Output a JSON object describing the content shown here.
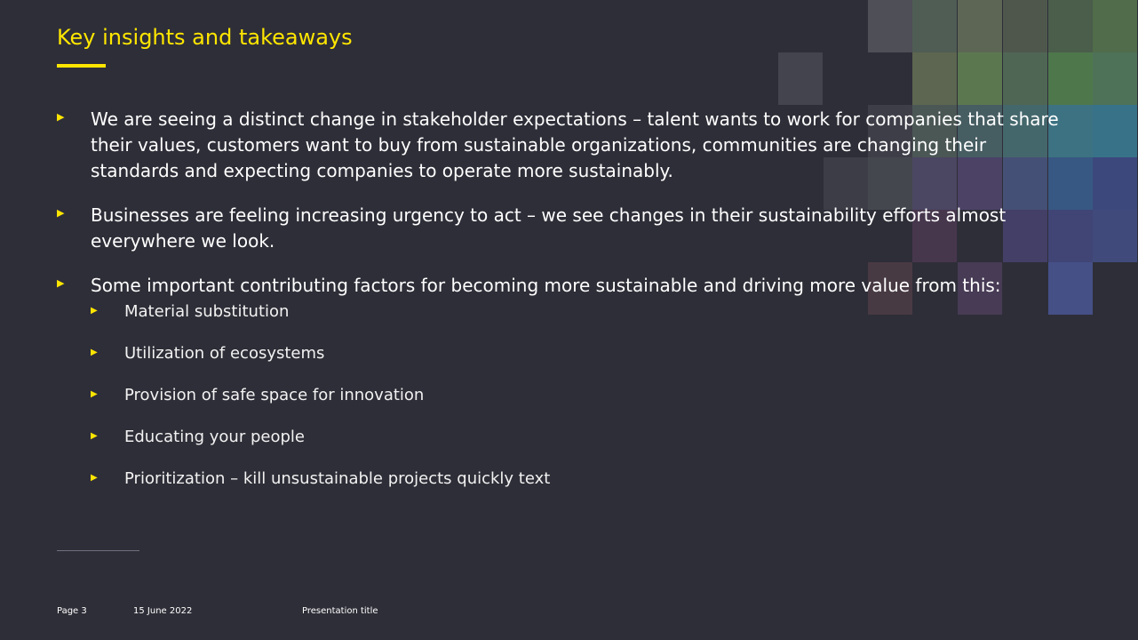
{
  "slide": {
    "title": "Key insights and takeaways",
    "bullets": [
      {
        "text": "We are seeing a distinct change in stakeholder expectations – talent wants to work for companies that share their values, customers want to buy from sustainable organizations, communities are changing their standards and expecting companies to operate more sustainably."
      },
      {
        "text": "Businesses are feeling increasing urgency to act – we see changes in their sustainability efforts almost everywhere we look."
      },
      {
        "text": "Some important contributing factors for becoming more sustainable and driving more value from this:"
      }
    ],
    "sub_bullets": [
      "Material substitution",
      "Utilization of ecosystems",
      "Provision of safe space for innovation",
      "Educating your people",
      "Prioritization – kill unsustainable projects quickly text"
    ]
  },
  "footer": {
    "page": "Page 3",
    "date": "15 June 2022",
    "presentation_title": "Presentation title"
  },
  "colors": {
    "background": "#2e2e38",
    "accent": "#ffe600",
    "text": "#ffffff"
  }
}
